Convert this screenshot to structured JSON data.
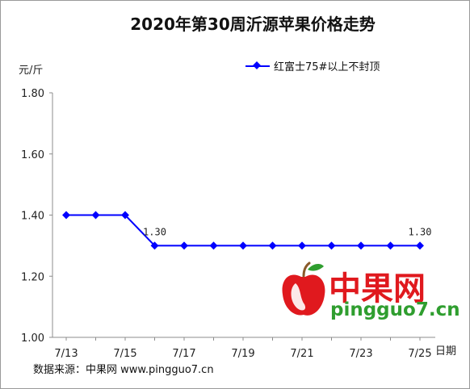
{
  "chart_data": {
    "type": "line",
    "title": "2020年第30周沂源苹果价格走势",
    "ylabel": "元/斤",
    "xlabel": "日期",
    "ylim": [
      1.0,
      1.8
    ],
    "yticks": [
      "1.00",
      "1.20",
      "1.40",
      "1.60",
      "1.80"
    ],
    "x": [
      "7/13",
      "7/14",
      "7/15",
      "7/16",
      "7/17",
      "7/18",
      "7/19",
      "7/20",
      "7/21",
      "7/22",
      "7/23",
      "7/24",
      "7/25"
    ],
    "xtick_labels": [
      "7/13",
      "7/15",
      "7/17",
      "7/19",
      "7/21",
      "7/23",
      "7/25"
    ],
    "series": [
      {
        "name": "红富士75#以上不封顶",
        "color": "#0000ff",
        "values": [
          1.4,
          1.4,
          1.4,
          1.3,
          1.3,
          1.3,
          1.3,
          1.3,
          1.3,
          1.3,
          1.3,
          1.3,
          1.3
        ]
      }
    ],
    "data_labels": [
      {
        "index": 3,
        "text": "1.30"
      },
      {
        "index": 12,
        "text": "1.30"
      }
    ],
    "grid": false,
    "legend": "top-right"
  },
  "source": "数据来源：中果网 www.pingguo7.cn",
  "watermark": {
    "text": "中果网",
    "url": "pingguo7.cn",
    "logo_icon": "apple-logo-icon",
    "colors": {
      "text": "#e0191e",
      "url": "#2f9e2f"
    }
  }
}
